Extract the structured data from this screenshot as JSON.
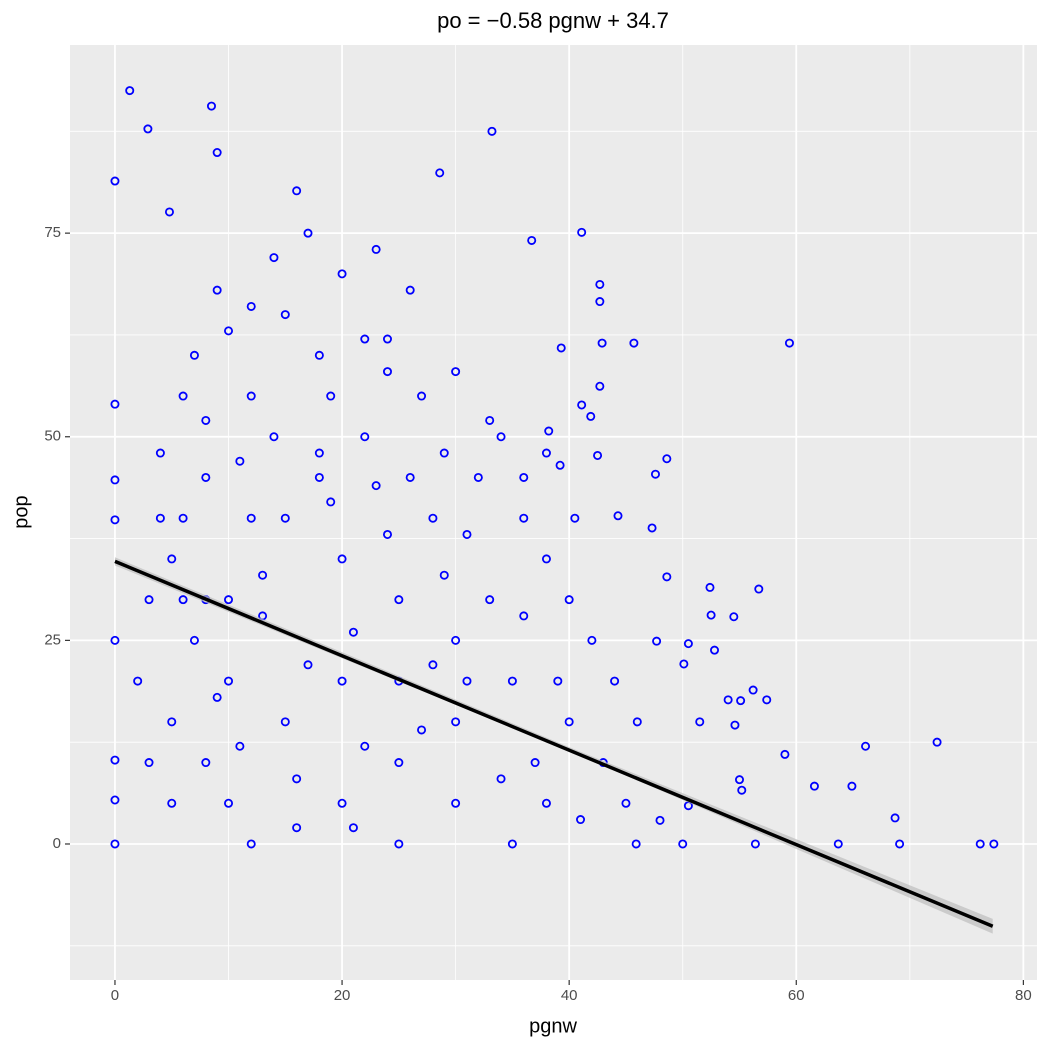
{
  "chart_data": {
    "type": "scatter",
    "title": "po = −0.58 pgnw + 34.7",
    "x_label": "pgnw",
    "y_label": "pop",
    "color": "#0000ff",
    "background": "#ebebeb",
    "grid": true,
    "xlim": [
      -3.96,
      81.2
    ],
    "ylim": [
      -16.7,
      98.1
    ],
    "xticks": [
      0,
      20,
      40,
      60,
      80
    ],
    "yticks": [
      0,
      25,
      50,
      75
    ],
    "x": [
      0,
      1.3,
      2.9,
      8.5,
      9,
      4.8,
      33.2,
      28.6,
      16,
      41.1,
      36.7,
      59.4,
      45.7,
      42.9,
      42.7,
      42.7,
      39.3,
      42.7,
      41.1,
      41.9,
      48.6,
      47.6,
      42.5,
      39.2,
      38.2,
      40.5,
      44.3,
      47.3,
      48.6,
      52.4,
      56.7,
      54.5,
      52.5,
      52.8,
      50.5,
      50.1,
      47.7,
      54,
      55.1,
      57.4,
      56.2,
      54.6,
      51.5,
      59,
      66.1,
      72.4,
      61.6,
      64.9,
      68.7,
      63.7,
      69.1,
      76.2,
      77.4,
      56.4,
      50,
      45.9,
      55.2,
      55,
      50.5,
      48,
      0,
      0,
      0,
      0,
      0,
      0,
      0,
      10,
      15,
      20,
      25,
      30,
      12,
      18,
      22,
      8,
      5,
      3,
      28,
      33,
      35,
      37,
      38,
      30,
      20,
      10,
      12,
      25,
      35,
      15,
      20,
      10,
      8,
      5,
      25,
      30,
      32,
      27,
      22,
      15,
      10,
      14,
      20,
      26,
      24,
      18,
      12,
      6,
      4,
      7,
      9,
      17,
      23,
      40,
      42,
      44,
      46,
      38,
      36,
      34,
      40,
      43,
      45,
      41,
      39,
      6,
      8,
      11,
      13,
      16,
      19,
      21,
      24,
      27,
      29,
      31,
      34,
      14,
      17,
      19,
      22,
      26,
      28,
      31,
      33,
      36,
      9,
      7,
      11,
      13,
      16,
      21,
      23,
      25,
      29,
      3,
      4,
      2,
      5,
      6,
      8,
      12,
      18,
      24,
      30,
      36,
      38
    ],
    "values": [
      81.4,
      92.5,
      87.8,
      90.6,
      84.9,
      77.6,
      87.5,
      82.4,
      80.2,
      75.1,
      74.1,
      61.5,
      61.5,
      61.5,
      66.6,
      68.7,
      60.9,
      56.2,
      53.9,
      52.5,
      47.3,
      45.4,
      47.7,
      46.5,
      50.7,
      40,
      40.3,
      38.8,
      32.8,
      31.5,
      31.3,
      27.9,
      28.1,
      23.8,
      24.6,
      22.1,
      24.9,
      17.7,
      17.6,
      17.7,
      18.9,
      14.6,
      15,
      11,
      12,
      12.5,
      7.1,
      7.1,
      3.2,
      0,
      0,
      0,
      0,
      0,
      0,
      0,
      6.6,
      7.9,
      4.7,
      2.9,
      54,
      39.8,
      10.3,
      0,
      5.4,
      25,
      44.7,
      30,
      40,
      35,
      20,
      15,
      55,
      60,
      50,
      45,
      35,
      30,
      40,
      30,
      20,
      10,
      5,
      5,
      5,
      5,
      0,
      0,
      0,
      15,
      20,
      20,
      10,
      15,
      30,
      25,
      45,
      55,
      62,
      65,
      63,
      72,
      70,
      68,
      58,
      48,
      40,
      55,
      48,
      25,
      68,
      75,
      73,
      30,
      25,
      20,
      15,
      35,
      40,
      50,
      15,
      10,
      5,
      3,
      20,
      40,
      30,
      12,
      28,
      8,
      42,
      26,
      38,
      14,
      33,
      20,
      8,
      50,
      22,
      55,
      12,
      45,
      22,
      38,
      52,
      28,
      18,
      60,
      47,
      33,
      2,
      2,
      44,
      10,
      48,
      10,
      40,
      20,
      5,
      30,
      52,
      66,
      45,
      62,
      58,
      45,
      48
    ],
    "trend_line": {
      "color": "#000000",
      "x": [
        0,
        77.3
      ],
      "values": [
        34.7,
        -10.1
      ]
    },
    "trend_band": {
      "color": "#bdbdbd",
      "x": [
        0,
        40,
        77.3
      ],
      "lower": [
        34.2,
        11.4,
        -11.0
      ],
      "upper": [
        35.2,
        11.9,
        -9.2
      ]
    }
  }
}
